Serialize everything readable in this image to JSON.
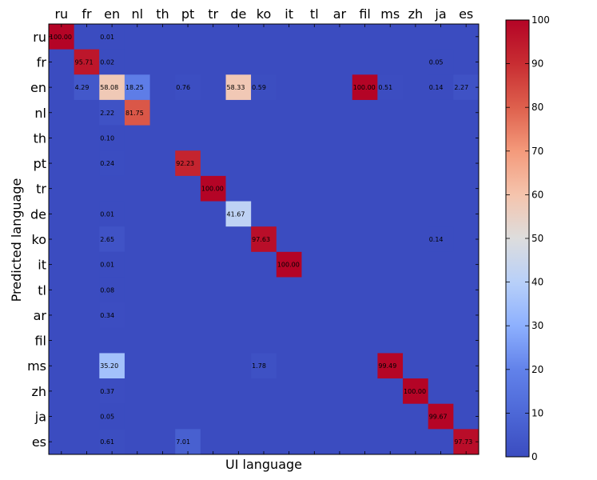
{
  "chart_data": {
    "type": "heatmap",
    "title": "",
    "xlabel": "UI language",
    "ylabel": "Predicted language",
    "x_categories": [
      "ru",
      "fr",
      "en",
      "nl",
      "th",
      "pt",
      "tr",
      "de",
      "ko",
      "it",
      "tl",
      "ar",
      "fil",
      "ms",
      "zh",
      "ja",
      "es"
    ],
    "y_categories": [
      "ru",
      "fr",
      "en",
      "nl",
      "th",
      "pt",
      "tr",
      "de",
      "ko",
      "it",
      "tl",
      "ar",
      "fil",
      "ms",
      "zh",
      "ja",
      "es"
    ],
    "value_range": [
      0,
      100
    ],
    "colormap": "coolwarm",
    "cells": [
      {
        "row": "ru",
        "col": "ru",
        "value": 100.0,
        "label": "100.00"
      },
      {
        "row": "ru",
        "col": "en",
        "value": 0.01,
        "label": "0.01"
      },
      {
        "row": "fr",
        "col": "fr",
        "value": 95.71,
        "label": "95.71"
      },
      {
        "row": "fr",
        "col": "en",
        "value": 0.02,
        "label": "0.02"
      },
      {
        "row": "fr",
        "col": "ja",
        "value": 0.05,
        "label": "0.05"
      },
      {
        "row": "en",
        "col": "fr",
        "value": 4.29,
        "label": "4.29"
      },
      {
        "row": "en",
        "col": "en",
        "value": 58.08,
        "label": "58.08"
      },
      {
        "row": "en",
        "col": "nl",
        "value": 18.25,
        "label": "18.25"
      },
      {
        "row": "en",
        "col": "pt",
        "value": 0.76,
        "label": "0.76"
      },
      {
        "row": "en",
        "col": "de",
        "value": 58.33,
        "label": "58.33"
      },
      {
        "row": "en",
        "col": "ko",
        "value": 0.59,
        "label": "0.59"
      },
      {
        "row": "en",
        "col": "fil",
        "value": 100.0,
        "label": "100.00"
      },
      {
        "row": "en",
        "col": "ms",
        "value": 0.51,
        "label": "0.51"
      },
      {
        "row": "en",
        "col": "ja",
        "value": 0.14,
        "label": "0.14"
      },
      {
        "row": "en",
        "col": "es",
        "value": 2.27,
        "label": "2.27"
      },
      {
        "row": "nl",
        "col": "en",
        "value": 2.22,
        "label": "2.22"
      },
      {
        "row": "nl",
        "col": "nl",
        "value": 81.75,
        "label": "81.75"
      },
      {
        "row": "th",
        "col": "en",
        "value": 0.1,
        "label": "0.10"
      },
      {
        "row": "pt",
        "col": "en",
        "value": 0.24,
        "label": "0.24"
      },
      {
        "row": "pt",
        "col": "pt",
        "value": 92.23,
        "label": "92.23"
      },
      {
        "row": "tr",
        "col": "tr",
        "value": 100.0,
        "label": "100.00"
      },
      {
        "row": "de",
        "col": "en",
        "value": 0.01,
        "label": "0.01"
      },
      {
        "row": "de",
        "col": "de",
        "value": 41.67,
        "label": "41.67"
      },
      {
        "row": "ko",
        "col": "en",
        "value": 2.65,
        "label": "2.65"
      },
      {
        "row": "ko",
        "col": "ko",
        "value": 97.63,
        "label": "97.63"
      },
      {
        "row": "ko",
        "col": "ja",
        "value": 0.14,
        "label": "0.14"
      },
      {
        "row": "it",
        "col": "en",
        "value": 0.01,
        "label": "0.01"
      },
      {
        "row": "it",
        "col": "it",
        "value": 100.0,
        "label": "100.00"
      },
      {
        "row": "tl",
        "col": "en",
        "value": 0.08,
        "label": "0.08"
      },
      {
        "row": "ar",
        "col": "en",
        "value": 0.34,
        "label": "0.34"
      },
      {
        "row": "ms",
        "col": "en",
        "value": 35.2,
        "label": "35.20"
      },
      {
        "row": "ms",
        "col": "ko",
        "value": 1.78,
        "label": "1.78"
      },
      {
        "row": "ms",
        "col": "ms",
        "value": 99.49,
        "label": "99.49"
      },
      {
        "row": "zh",
        "col": "en",
        "value": 0.37,
        "label": "0.37"
      },
      {
        "row": "zh",
        "col": "zh",
        "value": 100.0,
        "label": "100.00"
      },
      {
        "row": "ja",
        "col": "en",
        "value": 0.05,
        "label": "0.05"
      },
      {
        "row": "ja",
        "col": "ja",
        "value": 99.67,
        "label": "99.67"
      },
      {
        "row": "es",
        "col": "en",
        "value": 0.61,
        "label": "0.61"
      },
      {
        "row": "es",
        "col": "pt",
        "value": 7.01,
        "label": "7.01"
      },
      {
        "row": "es",
        "col": "es",
        "value": 97.73,
        "label": "97.73"
      }
    ],
    "colorbar": {
      "ticks": [
        0,
        10,
        20,
        30,
        40,
        50,
        60,
        70,
        80,
        90,
        100
      ],
      "tick_labels": [
        "0",
        "10",
        "20",
        "30",
        "40",
        "50",
        "60",
        "70",
        "80",
        "90",
        "100"
      ]
    },
    "grid": false,
    "legend": "colorbar-right"
  }
}
